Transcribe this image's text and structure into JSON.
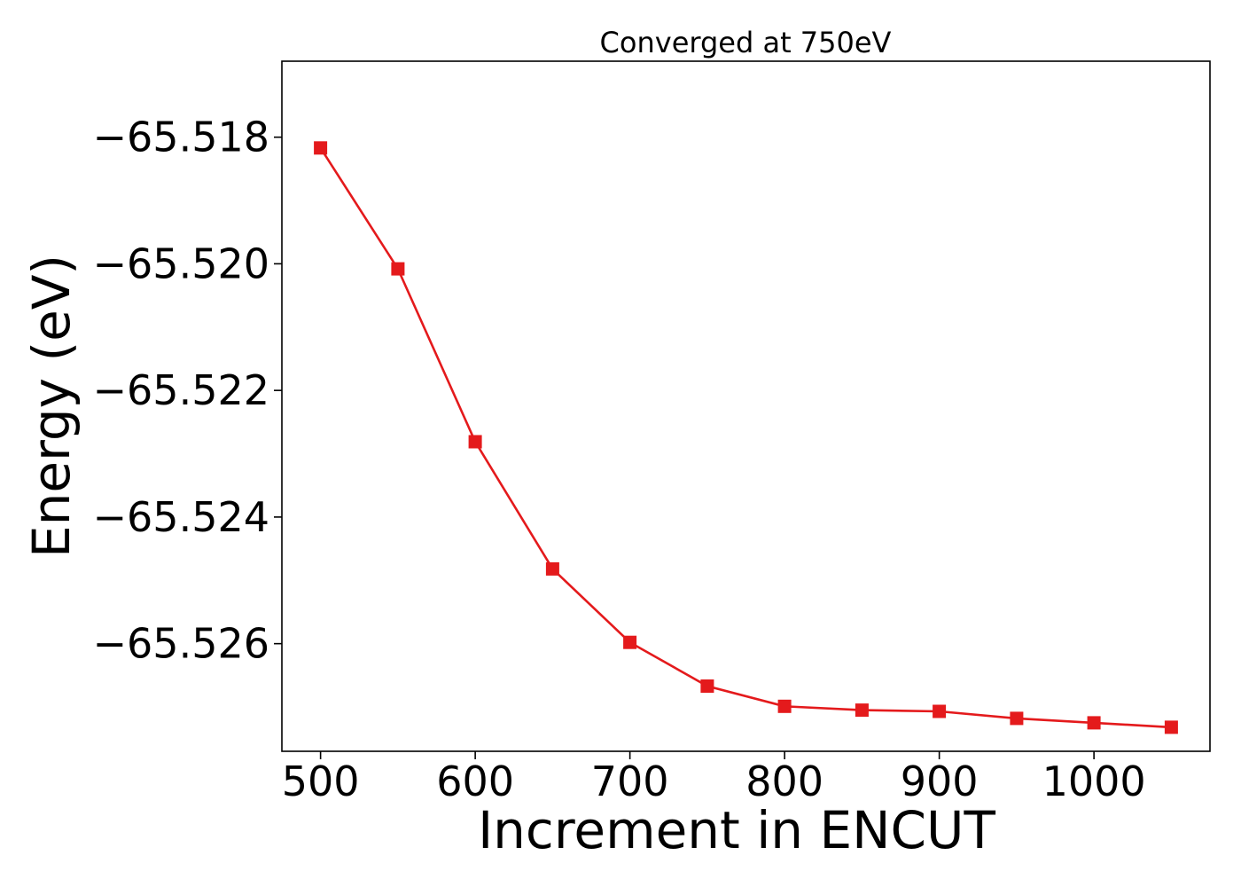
{
  "chart_data": {
    "type": "line",
    "title": "Converged at 750eV",
    "xlabel": "Increment in ENCUT",
    "ylabel": "Energy (eV)",
    "xlim": [
      475,
      1075
    ],
    "ylim": [
      -65.5277,
      -65.5168
    ],
    "xticks": [
      500,
      600,
      700,
      800,
      900,
      1000
    ],
    "yticks": [
      -65.518,
      -65.52,
      -65.522,
      -65.524,
      -65.526
    ],
    "xtick_labels": [
      "500",
      "600",
      "700",
      "800",
      "900",
      "1000"
    ],
    "ytick_labels": [
      "−65.518",
      "−65.520",
      "−65.522",
      "−65.524",
      "−65.526"
    ],
    "grid": false,
    "series": [
      {
        "color": "#e41a1c",
        "marker": "square",
        "x": [
          500,
          550,
          600,
          650,
          700,
          750,
          800,
          850,
          900,
          950,
          1000,
          1050
        ],
        "y": [
          -65.51817,
          -65.52008,
          -65.52281,
          -65.52482,
          -65.52598,
          -65.52667,
          -65.52699,
          -65.52705,
          -65.52707,
          -65.52718,
          -65.52725,
          -65.52732
        ]
      }
    ]
  }
}
